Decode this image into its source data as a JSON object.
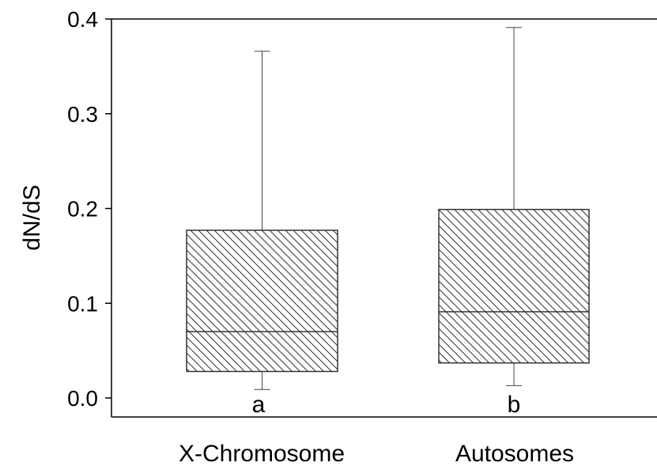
{
  "chart_data": {
    "type": "box",
    "ylabel": "dN/dS",
    "ylim": [
      0.0,
      0.4
    ],
    "yticks": [
      "0.0",
      "0.1",
      "0.2",
      "0.3",
      "0.4"
    ],
    "ytick_values": [
      0.0,
      0.1,
      0.2,
      0.3,
      0.4
    ],
    "categories": [
      "X-Chromosome",
      "Autosomes"
    ],
    "boxes": [
      {
        "category": "X-Chromosome",
        "whisker_low": 0.009,
        "q1": 0.028,
        "median": 0.07,
        "q3": 0.177,
        "whisker_high": 0.366,
        "annotation": "a"
      },
      {
        "category": "Autosomes",
        "whisker_low": 0.013,
        "q1": 0.037,
        "median": 0.091,
        "q3": 0.199,
        "whisker_high": 0.391,
        "annotation": "b"
      }
    ],
    "fill_pattern": "diagonal-hatch",
    "grid": false,
    "legend": "none"
  }
}
